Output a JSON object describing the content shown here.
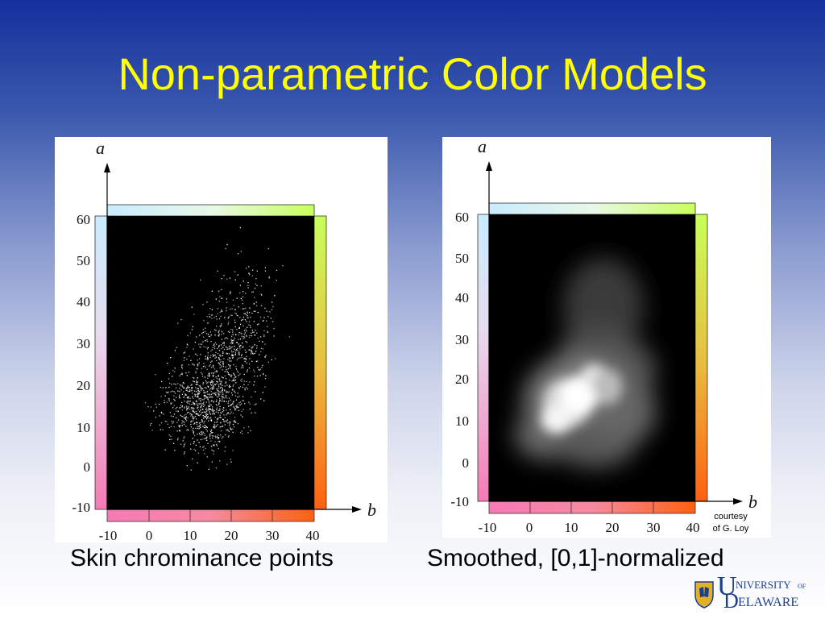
{
  "slide": {
    "title": "Non-parametric Color Models",
    "left_caption": "Skin chrominance points",
    "right_caption": "Smoothed, [0,1]-normalized",
    "courtesy_line1": "courtesy",
    "courtesy_line2": "of G. Loy",
    "logo": {
      "word1_initial": "U",
      "word1_rest": "NIVERSITY",
      "of": "OF",
      "word2_initial": "D",
      "word2_rest": "ELAWARE"
    }
  },
  "figures": [
    {
      "kind": "scatter",
      "y_axis_label": "a",
      "x_axis_label": "b",
      "y_ticks": [
        "60",
        "50",
        "40",
        "30",
        "20",
        "10",
        "0",
        "-10"
      ],
      "x_ticks": [
        "-10",
        "0",
        "10",
        "20",
        "30",
        "40"
      ]
    },
    {
      "kind": "smoothed-density",
      "y_axis_label": "a",
      "x_axis_label": "b",
      "y_ticks": [
        "60",
        "50",
        "40",
        "30",
        "20",
        "10",
        "0",
        "-10"
      ],
      "x_ticks": [
        "-10",
        "0",
        "10",
        "20",
        "30",
        "40"
      ]
    }
  ],
  "colors": {
    "title": "#ffff00",
    "plot_background": "#000000",
    "logo_blue": "#1b3f8f",
    "logo_gold": "#e3b02a"
  }
}
